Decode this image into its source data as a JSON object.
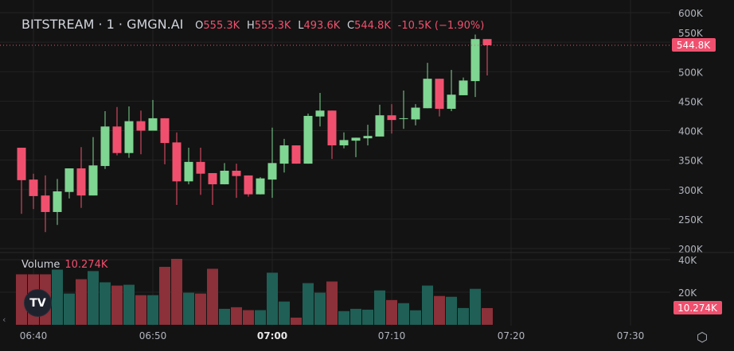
{
  "header": {
    "symbol": "BITSTREAM · 1 · GMGN.AI",
    "open_label": "O",
    "open": "555.3K",
    "high_label": "H",
    "high": "555.3K",
    "low_label": "L",
    "low": "493.6K",
    "close_label": "C",
    "close": "544.8K",
    "change": "-10.5K (−1.90%)"
  },
  "volume_legend": {
    "label": "Volume",
    "value": "10.274K"
  },
  "colors": {
    "background": "#131313",
    "up": "#7fd592",
    "down": "#f0506e",
    "vol_up": "#1f5f55",
    "vol_down": "#8c3039",
    "grid": "#232323",
    "text": "#b2b5be"
  },
  "icons": {
    "logo": "tradingview-logo",
    "settings": "settings-hex-icon",
    "scroll": "chevron-left-icon"
  },
  "chart_data": {
    "type": "candlestick",
    "time_start": "06:39",
    "interval_minutes": 1,
    "x_ticks": [
      "06:40",
      "06:50",
      "07:00",
      "07:10",
      "07:20",
      "07:30"
    ],
    "y_ticks": [
      "600K",
      "550K",
      "500K",
      "450K",
      "400K",
      "350K",
      "300K",
      "250K",
      "200K"
    ],
    "ylim": [
      200,
      600
    ],
    "y_unit": "K",
    "last_price_label": "544.8K",
    "last_price": 544.8,
    "ohlc": [
      [
        371,
        371,
        259,
        316
      ],
      [
        317,
        327,
        267,
        289
      ],
      [
        290,
        324,
        228,
        262
      ],
      [
        262,
        318,
        240,
        297
      ],
      [
        296,
        336,
        285,
        336
      ],
      [
        336,
        372,
        269,
        290
      ],
      [
        290,
        389,
        290,
        341
      ],
      [
        340,
        433,
        335,
        407
      ],
      [
        407,
        440,
        358,
        362
      ],
      [
        362,
        441,
        354,
        416
      ],
      [
        416,
        434,
        360,
        400
      ],
      [
        400,
        452,
        400,
        421
      ],
      [
        421,
        421,
        343,
        379
      ],
      [
        380,
        397,
        274,
        314
      ],
      [
        314,
        371,
        309,
        347
      ],
      [
        347,
        371,
        291,
        327
      ],
      [
        328,
        328,
        274,
        309
      ],
      [
        309,
        345,
        309,
        332
      ],
      [
        332,
        344,
        286,
        323
      ],
      [
        324,
        324,
        288,
        292
      ],
      [
        292,
        321,
        292,
        319
      ],
      [
        317,
        405,
        286,
        345
      ],
      [
        344,
        386,
        329,
        375
      ],
      [
        375,
        375,
        344,
        344
      ],
      [
        344,
        429,
        344,
        425
      ],
      [
        424,
        464,
        407,
        434
      ],
      [
        434,
        434,
        352,
        375
      ],
      [
        375,
        397,
        370,
        384
      ],
      [
        383,
        388,
        355,
        388
      ],
      [
        387,
        410,
        375,
        391
      ],
      [
        390,
        444,
        390,
        426
      ],
      [
        426,
        445,
        395,
        418
      ],
      [
        420,
        468,
        403,
        421
      ],
      [
        419,
        445,
        409,
        439
      ],
      [
        438,
        515,
        438,
        488
      ],
      [
        488,
        488,
        424,
        437
      ],
      [
        437,
        503,
        433,
        461
      ],
      [
        460,
        490,
        460,
        485
      ],
      [
        484,
        563,
        457,
        555.3
      ],
      [
        555.3,
        555.3,
        493.6,
        544.8
      ]
    ],
    "volume": {
      "label": "Volume",
      "y_ticks": [
        "40K",
        "20K"
      ],
      "ylim": [
        0,
        40
      ],
      "last_label": "10.274K",
      "values": [
        31,
        31,
        31,
        33.9,
        19.2,
        28,
        33,
        26.1,
        24.1,
        24.6,
        18.2,
        18.2,
        35.6,
        40.5,
        19.7,
        19.2,
        34.4,
        9.8,
        10.8,
        9,
        9,
        32,
        14.3,
        4.4,
        25.6,
        19.7,
        26.6,
        8.4,
        9.8,
        9.3,
        21.1,
        15.2,
        13.3,
        8.9,
        24.1,
        17.7,
        17.2,
        10.3,
        22.1,
        10.274
      ]
    }
  }
}
